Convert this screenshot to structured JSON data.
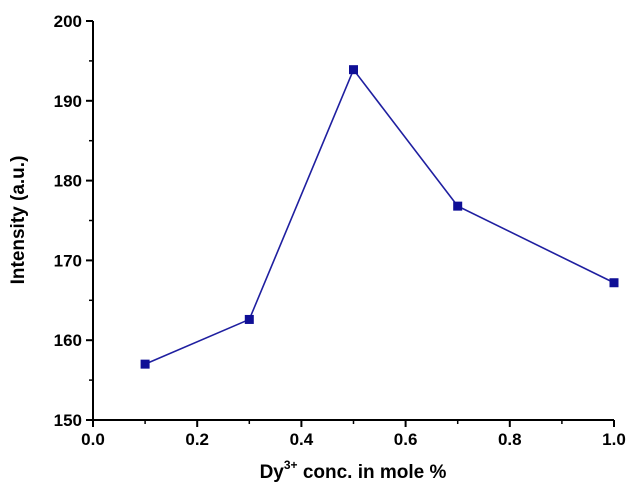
{
  "chart_data": {
    "type": "line",
    "title": "",
    "xlabel": {
      "base": "Dy",
      "superscript": "3+",
      "rest": " conc. in mole %"
    },
    "ylabel": "Intensity (a.u.)",
    "xlim": [
      0.0,
      1.0
    ],
    "ylim": [
      150,
      200
    ],
    "xticks": [
      "0.0",
      "0.2",
      "0.4",
      "0.6",
      "0.8",
      "1.0"
    ],
    "yticks": [
      "150",
      "160",
      "170",
      "180",
      "190",
      "200"
    ],
    "grid": false,
    "series": [
      {
        "x": [
          0.1,
          0.3,
          0.5,
          0.7,
          1.0
        ],
        "y": [
          157.0,
          162.6,
          193.9,
          176.8,
          167.2
        ],
        "color": "#1f1fa0",
        "marker_color": "#0f0f96",
        "marker": "square"
      }
    ]
  }
}
